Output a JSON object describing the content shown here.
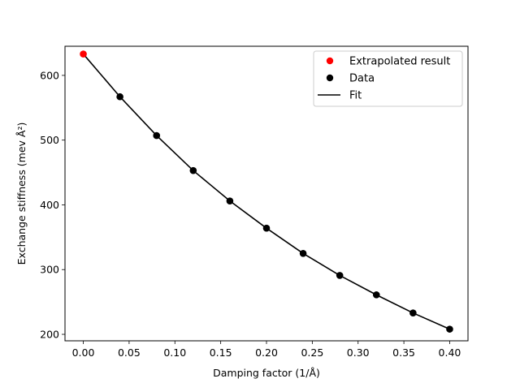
{
  "chart_data": {
    "type": "scatter",
    "xlabel": "Damping factor  (1/Å)",
    "ylabel": "Exchange stiffness (mev Å²)",
    "xlim": [
      -0.02,
      0.42
    ],
    "ylim": [
      190,
      645
    ],
    "xticks": [
      0.0,
      0.05,
      0.1,
      0.15,
      0.2,
      0.25,
      0.3,
      0.35,
      0.4
    ],
    "xtick_labels": [
      "0.00",
      "0.05",
      "0.10",
      "0.15",
      "0.20",
      "0.25",
      "0.30",
      "0.35",
      "0.40"
    ],
    "yticks": [
      200,
      300,
      400,
      500,
      600
    ],
    "ytick_labels": [
      "200",
      "300",
      "400",
      "500",
      "600"
    ],
    "grid": false,
    "legend_position": "top-right",
    "series": [
      {
        "name": "Extrapolated result",
        "kind": "marker",
        "color": "#ff0000",
        "x": [
          0.0
        ],
        "y": [
          633
        ]
      },
      {
        "name": "Data",
        "kind": "marker",
        "color": "#000000",
        "x": [
          0.04,
          0.08,
          0.12,
          0.16,
          0.2,
          0.24,
          0.28,
          0.32,
          0.36,
          0.4
        ],
        "y": [
          567,
          507,
          453,
          406,
          364,
          325,
          291,
          261,
          233,
          208
        ]
      },
      {
        "name": "Fit",
        "kind": "line",
        "color": "#000000",
        "x": [
          0.0,
          0.04,
          0.08,
          0.12,
          0.16,
          0.2,
          0.24,
          0.28,
          0.32,
          0.36,
          0.4
        ],
        "y": [
          633,
          567,
          507,
          453,
          406,
          364,
          325,
          291,
          261,
          233,
          208
        ]
      }
    ]
  }
}
